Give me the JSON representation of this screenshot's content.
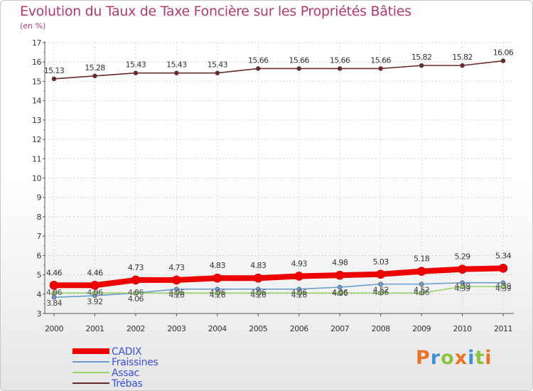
{
  "title": "Evolution du Taux de Taxe Foncière sur les Propriétés Bâties",
  "unit_label": "(en %)",
  "logo": {
    "text": "Proxiti"
  },
  "chart_data": {
    "type": "line",
    "title": "Evolution du Taux de Taxe Foncière sur les Propriétés Bâties",
    "ylabel": "(en %)",
    "xlabel": "",
    "ylim": [
      3,
      17
    ],
    "y_ticks": [
      "3",
      "4",
      "5",
      "6",
      "7",
      "8",
      "9",
      "10",
      "11",
      "12",
      "13",
      "14",
      "15",
      "16",
      "17"
    ],
    "categories": [
      "2000",
      "2001",
      "2002",
      "2003",
      "2004",
      "2005",
      "2006",
      "2007",
      "2008",
      "2009",
      "2010",
      "2011"
    ],
    "series": [
      {
        "name": "Trébas",
        "color": "#6b2a2a",
        "values": [
          15.13,
          15.28,
          15.43,
          15.43,
          15.43,
          15.66,
          15.66,
          15.66,
          15.66,
          15.82,
          15.82,
          16.06
        ],
        "labels": [
          "15.13",
          "15.28",
          "15.43",
          "15.43",
          "15.43",
          "15.66",
          "15.66",
          "15.66",
          "15.66",
          "15.82",
          "15.82",
          "16.06"
        ]
      },
      {
        "name": "Fraissines",
        "color": "#6a9ccd",
        "values": [
          3.84,
          3.92,
          4.06,
          4.26,
          4.26,
          4.26,
          4.26,
          4.36,
          4.52,
          4.52,
          4.59,
          4.59
        ],
        "labels": [
          "3.84",
          "3.92",
          "4.06",
          "4.26",
          "4.26",
          "4.26",
          "4.26",
          "4.36",
          "4.52",
          "4.52",
          "4.59",
          "4.59"
        ]
      },
      {
        "name": "Assac",
        "color": "#9ad46a",
        "values": [
          4.06,
          4.06,
          4.06,
          4.06,
          4.06,
          4.06,
          4.06,
          4.06,
          4.06,
          4.06,
          4.39,
          4.39
        ],
        "labels": [
          "4.06",
          "4.06",
          "4.06",
          "4.06",
          "4.06",
          "4.06",
          "4.06",
          "4.06",
          "4.06",
          "4.06",
          "4.39",
          "4.39"
        ]
      },
      {
        "name": "CADIX",
        "color": "#ee0000",
        "values": [
          4.46,
          4.46,
          4.73,
          4.73,
          4.83,
          4.83,
          4.93,
          4.98,
          5.03,
          5.18,
          5.29,
          5.34
        ],
        "labels": [
          "4.46",
          "4.46",
          "4.73",
          "4.73",
          "4.83",
          "4.83",
          "4.93",
          "4.98",
          "5.03",
          "5.18",
          "5.29",
          "5.34"
        ]
      }
    ],
    "legend": [
      {
        "name": "CADIX",
        "color": "#ee0000"
      },
      {
        "name": "Fraissines",
        "color": "#6a9ccd"
      },
      {
        "name": "Assac",
        "color": "#9ad46a"
      },
      {
        "name": "Trébas",
        "color": "#6b2a2a"
      }
    ],
    "legend_position": "bottom-left"
  }
}
